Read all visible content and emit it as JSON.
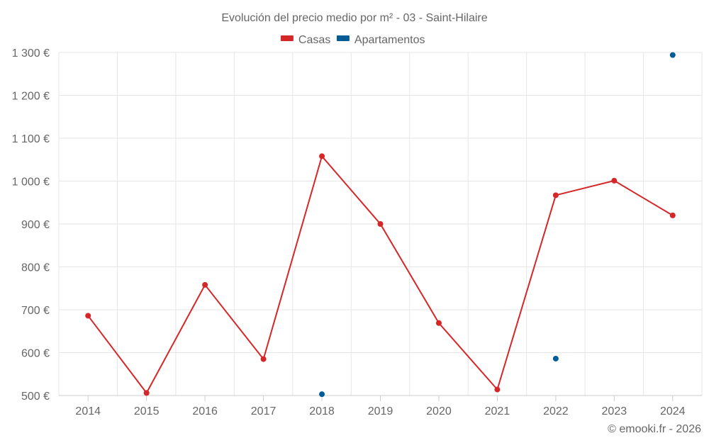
{
  "chart_data": {
    "type": "line",
    "title": "Evolución del precio medio por m² - 03 - Saint-Hilaire",
    "categories": [
      "2014",
      "2015",
      "2016",
      "2017",
      "2018",
      "2019",
      "2020",
      "2021",
      "2022",
      "2023",
      "2024"
    ],
    "y_ticks": [
      500,
      600,
      700,
      800,
      900,
      1000,
      1100,
      1200,
      1300
    ],
    "y_tick_labels": [
      "500 €",
      "600 €",
      "700 €",
      "800 €",
      "900 €",
      "1 000 €",
      "1 100 €",
      "1 200 €",
      "1 300 €"
    ],
    "ylim": [
      500,
      1300
    ],
    "grid": true,
    "legend_position": "top-center",
    "series": [
      {
        "name": "Casas",
        "color": "#d62728",
        "style": "line-markers",
        "values": [
          686,
          506,
          758,
          585,
          1058,
          900,
          669,
          514,
          967,
          1001,
          920
        ]
      },
      {
        "name": "Apartamentos",
        "color": "#005b96",
        "style": "markers",
        "values": [
          null,
          null,
          null,
          null,
          503,
          null,
          null,
          null,
          586,
          null,
          1294
        ]
      }
    ],
    "credit": "© emooki.fr - 2026"
  }
}
